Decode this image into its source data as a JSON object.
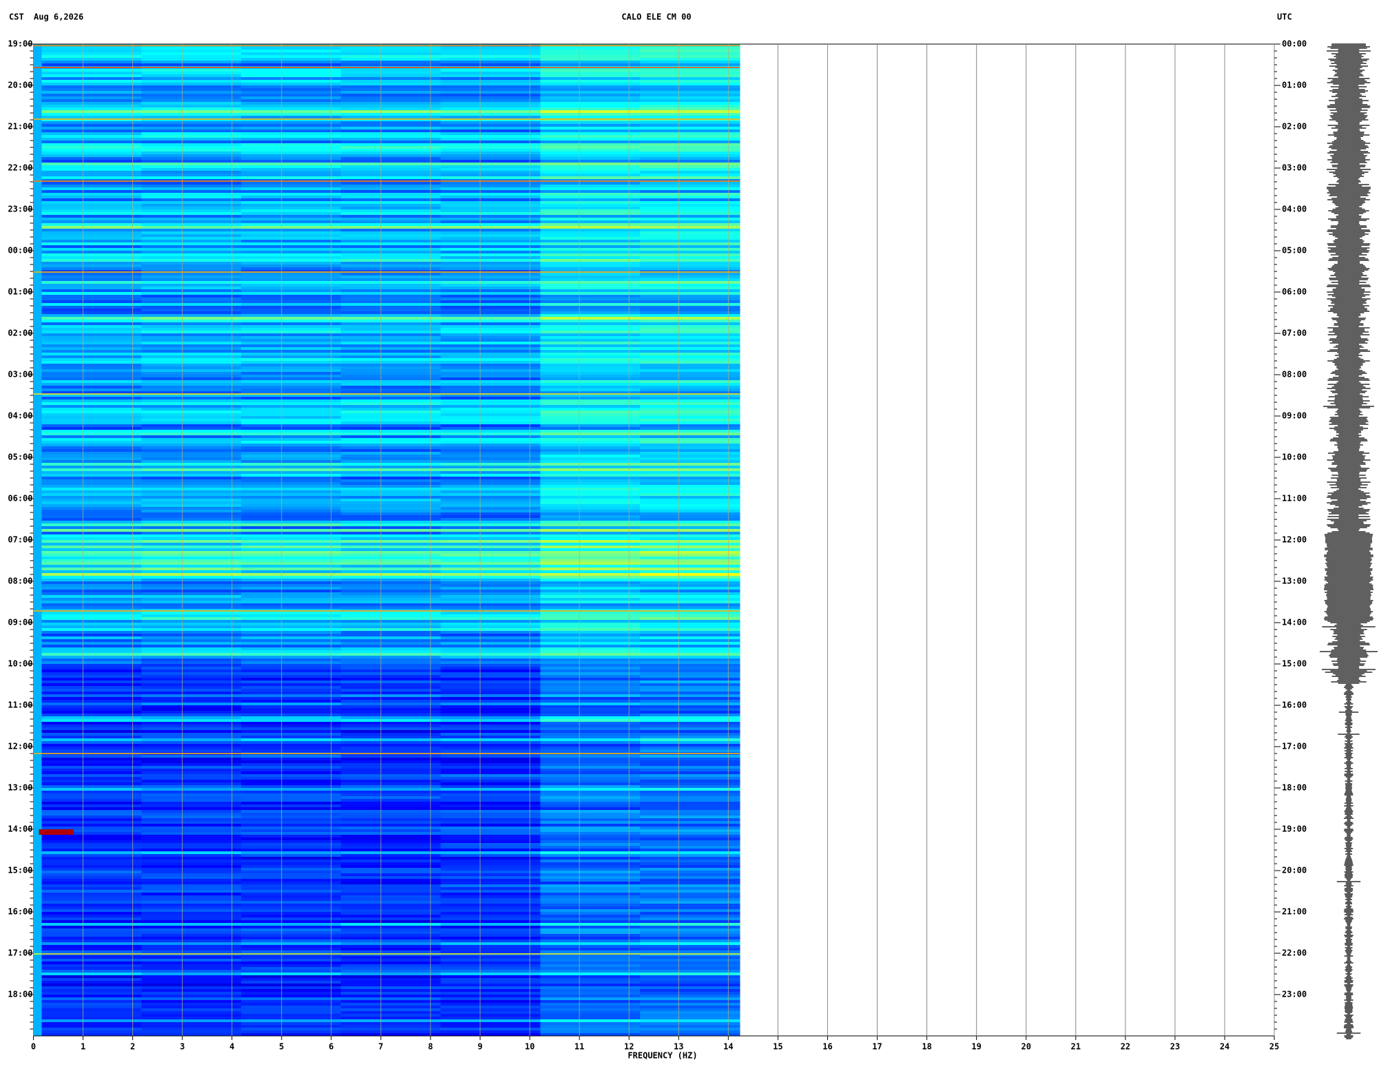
{
  "chart_data": {
    "type": "spectrogram",
    "left_timezone": "CST",
    "date": "Aug 6,2026",
    "title": "CALO ELE CM 00",
    "right_timezone": "UTC",
    "x_label": "FREQUENCY (HZ)",
    "xlim": [
      0,
      25
    ],
    "xticks": [
      0,
      1,
      2,
      3,
      4,
      5,
      6,
      7,
      8,
      9,
      10,
      11,
      12,
      13,
      14,
      15,
      16,
      17,
      18,
      19,
      20,
      21,
      22,
      23,
      24,
      25
    ],
    "grid": true,
    "y_left_labels": [
      "19:00",
      "20:00",
      "21:00",
      "22:00",
      "23:00",
      "00:00",
      "01:00",
      "02:00",
      "03:00",
      "04:00",
      "05:00",
      "06:00",
      "07:00",
      "08:00",
      "09:00",
      "10:00",
      "11:00",
      "12:00",
      "13:00",
      "14:00",
      "15:00",
      "16:00",
      "17:00",
      "18:00"
    ],
    "y_right_labels": [
      "00:00",
      "01:00",
      "02:00",
      "03:00",
      "04:00",
      "05:00",
      "06:00",
      "07:00",
      "08:00",
      "09:00",
      "10:00",
      "11:00",
      "12:00",
      "13:00",
      "14:00",
      "15:00",
      "16:00",
      "17:00",
      "18:00",
      "19:00",
      "20:00",
      "21:00",
      "22:00",
      "23:00"
    ]
  }
}
